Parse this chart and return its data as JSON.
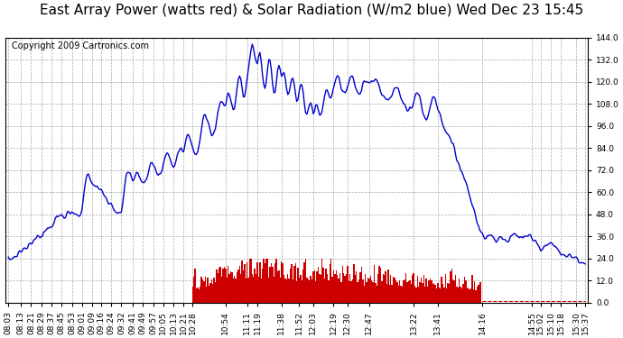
{
  "title": "East Array Power (watts red) & Solar Radiation (W/m2 blue) Wed Dec 23 15:45",
  "copyright": "Copyright 2009 Cartronics.com",
  "ylim": [
    0.0,
    144.0
  ],
  "yticks": [
    0.0,
    12.0,
    24.0,
    36.0,
    48.0,
    60.0,
    72.0,
    84.0,
    96.0,
    108.0,
    120.0,
    132.0,
    144.0
  ],
  "line_color_blue": "#0000cc",
  "bar_color_red": "#cc0000",
  "background_color": "#ffffff",
  "grid_color": "#aaaaaa",
  "title_fontsize": 11,
  "copyright_fontsize": 7,
  "tick_fontsize": 6.5,
  "x_labels": [
    "08:03",
    "08:13",
    "08:21",
    "08:29",
    "08:37",
    "08:45",
    "08:53",
    "09:01",
    "09:09",
    "09:16",
    "09:24",
    "09:32",
    "09:41",
    "09:49",
    "09:57",
    "10:05",
    "10:13",
    "10:21",
    "10:28",
    "10:54",
    "11:11",
    "11:19",
    "11:38",
    "11:52",
    "12:03",
    "12:19",
    "12:30",
    "12:47",
    "13:22",
    "13:41",
    "14:16",
    "14:55",
    "15:02",
    "15:10",
    "15:18",
    "15:30",
    "15:37"
  ]
}
